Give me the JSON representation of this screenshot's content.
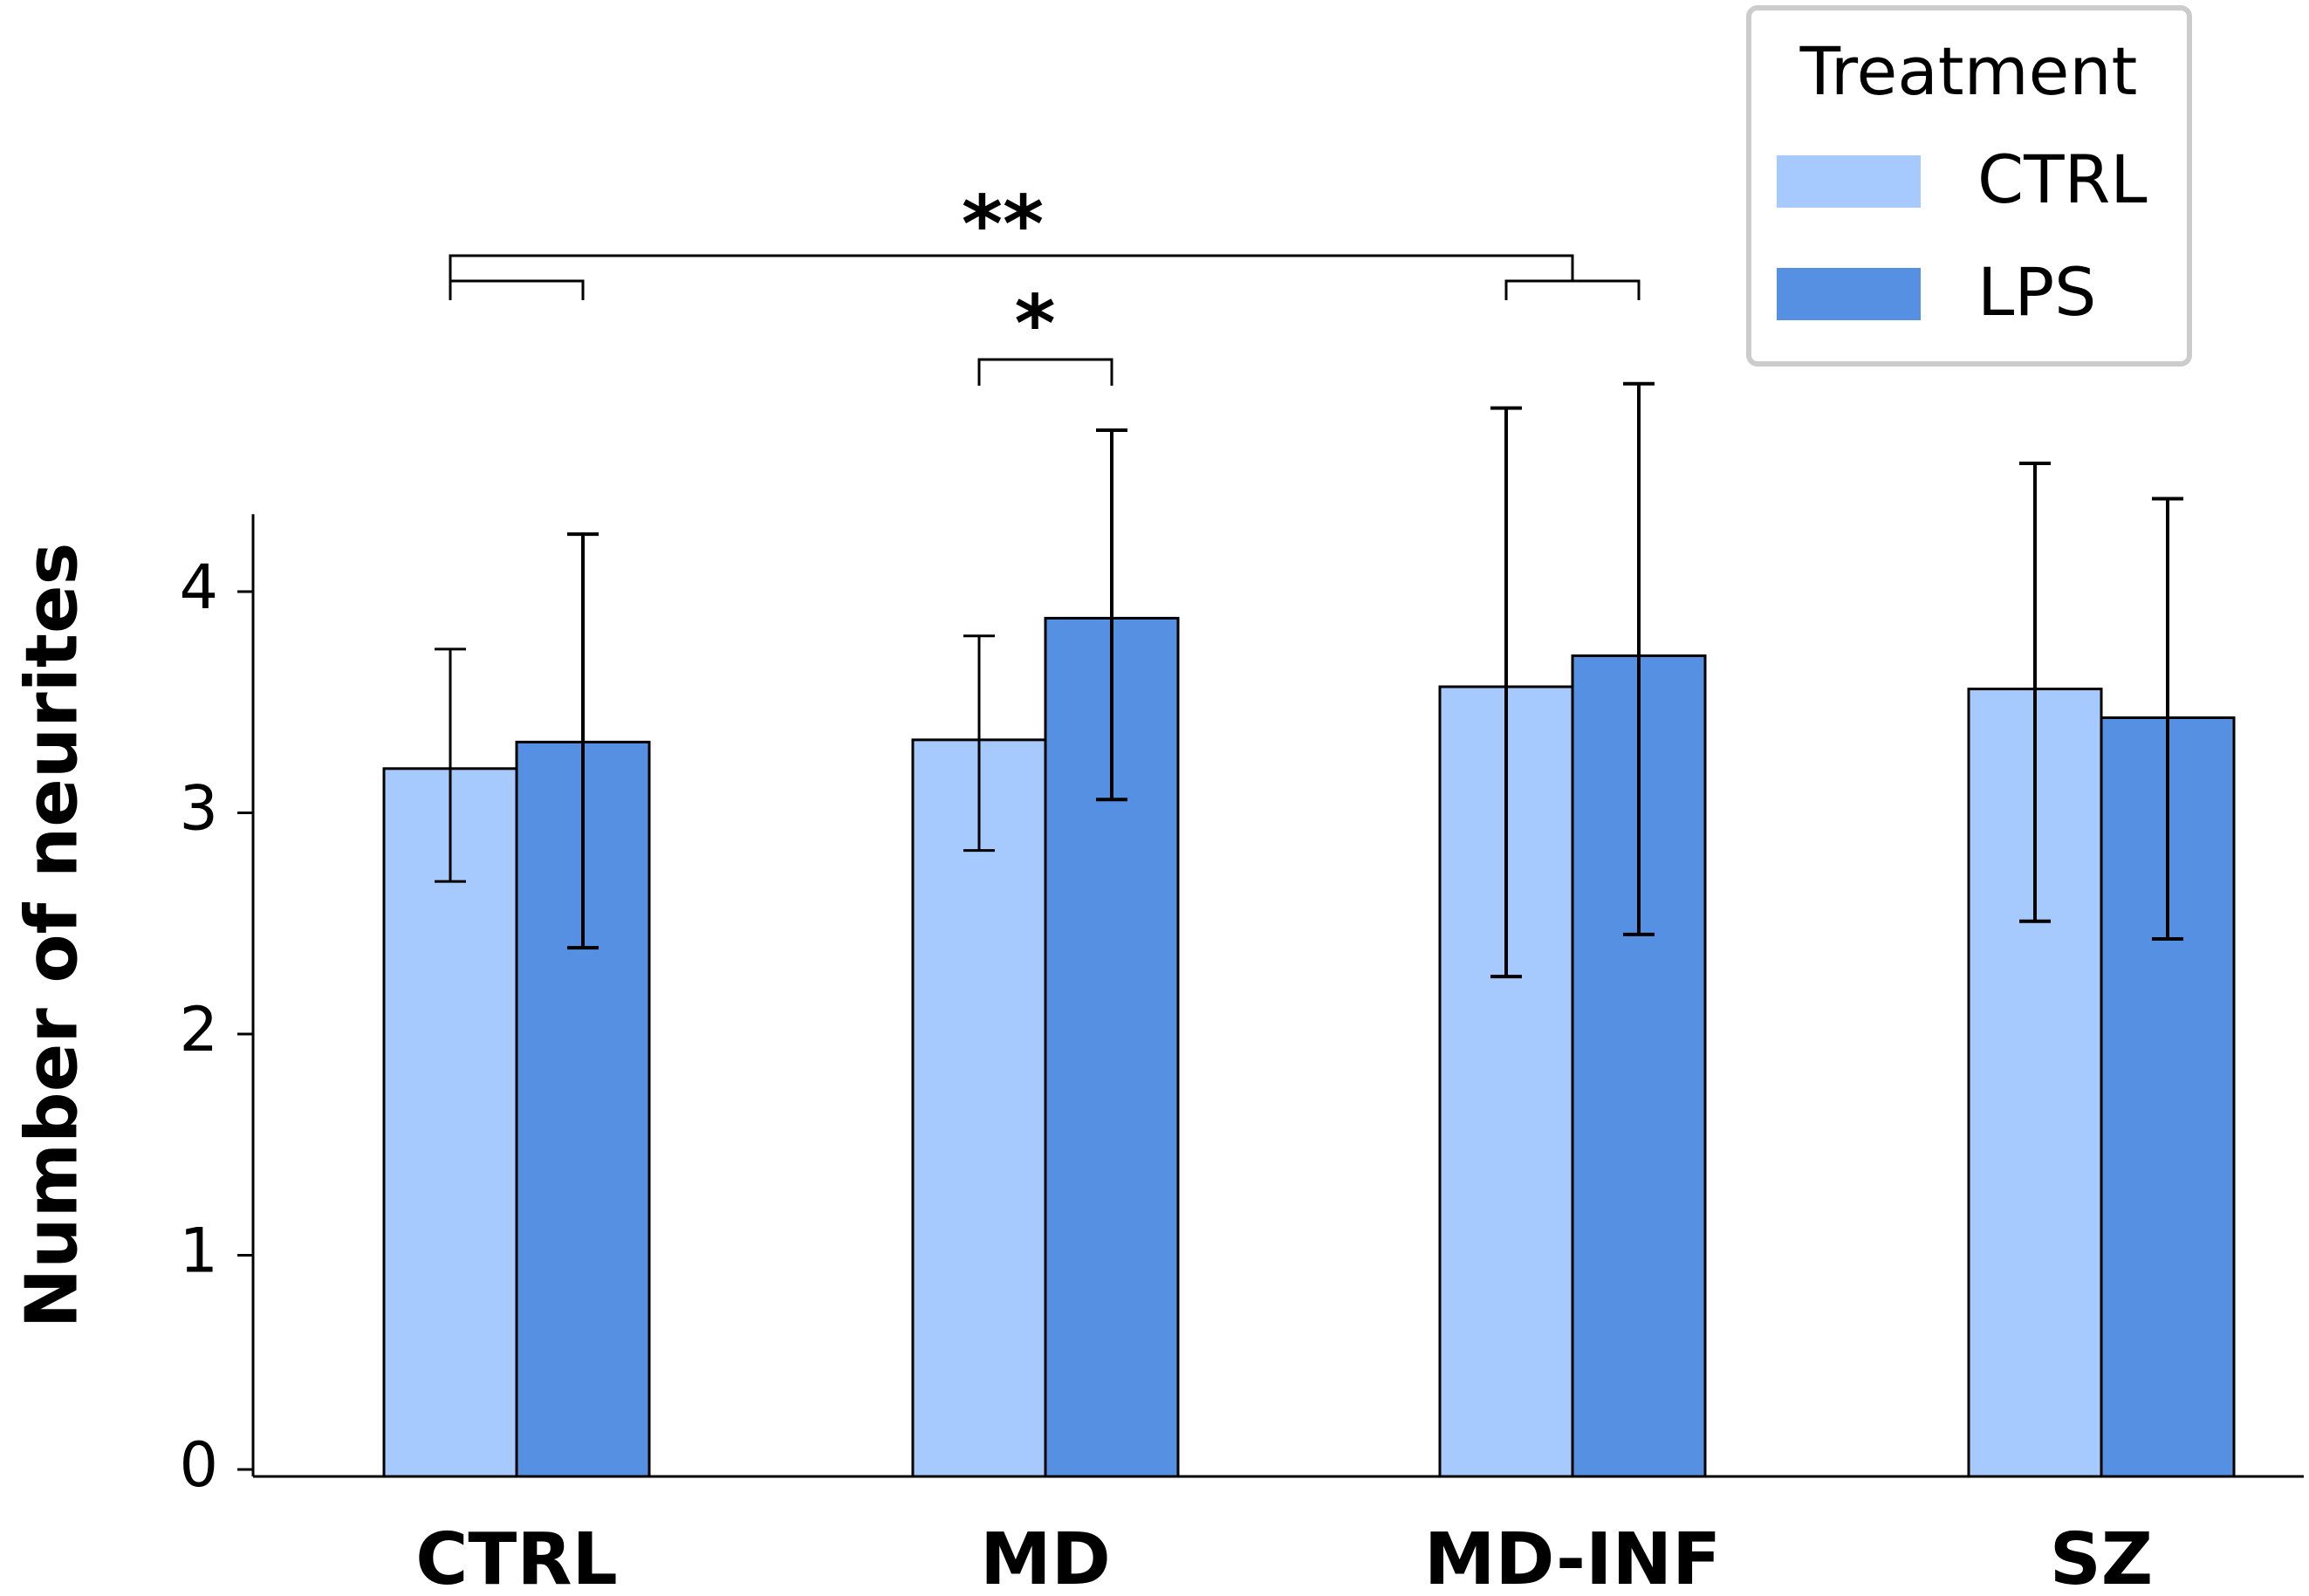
{
  "chart_data": {
    "type": "bar",
    "title": "",
    "xlabel": "",
    "ylabel": "Number of neurites",
    "ylim": [
      0,
      4.35
    ],
    "yticks": [
      "0",
      "1",
      "2",
      "3",
      "4"
    ],
    "categories": [
      "CTRL",
      "MD",
      "MD-INF",
      "SZ"
    ],
    "series": [
      {
        "name": "CTRL",
        "color": "#a6cafe",
        "values": [
          3.2,
          3.33,
          3.57,
          3.56
        ],
        "err_low": [
          2.69,
          2.83,
          2.26,
          2.51
        ],
        "err_high": [
          3.74,
          3.8,
          4.83,
          4.58
        ]
      },
      {
        "name": "LPS",
        "color": "#5590e3",
        "values": [
          3.32,
          3.88,
          3.71,
          3.43
        ],
        "err_low": [
          2.39,
          3.06,
          2.45,
          2.43
        ],
        "err_high": [
          4.26,
          4.73,
          4.94,
          4.42
        ]
      }
    ],
    "legend": {
      "title": "Treatment",
      "position": "top-right",
      "entries": [
        "CTRL",
        "LPS"
      ]
    },
    "significance": [
      {
        "label": "**",
        "from": "CTRL",
        "to": "MD-INF"
      },
      {
        "label": "*",
        "from": "MD",
        "to": "MD"
      }
    ]
  }
}
